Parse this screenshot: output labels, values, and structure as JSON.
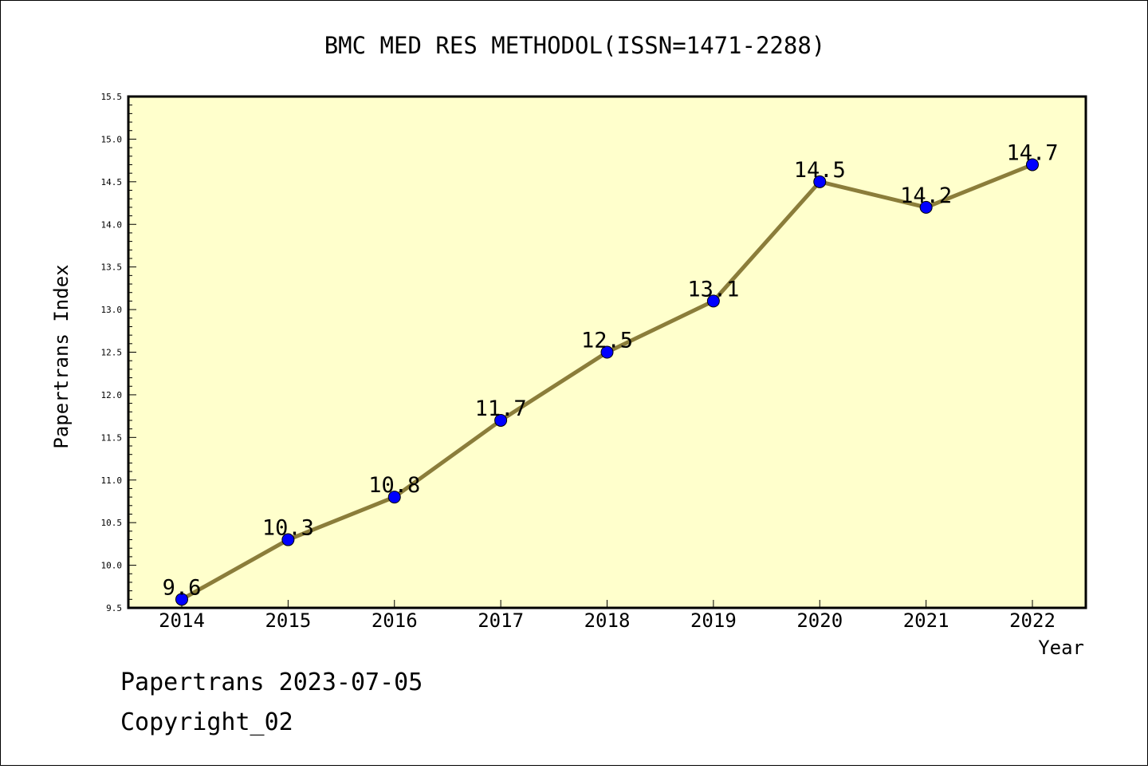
{
  "chart_data": {
    "type": "line",
    "title": "BMC MED RES METHODOL(ISSN=1471-2288)",
    "xlabel": "Year",
    "ylabel": "Papertrans Index",
    "x": [
      "2014",
      "2015",
      "2016",
      "2017",
      "2018",
      "2019",
      "2020",
      "2021",
      "2022"
    ],
    "y": [
      9.6,
      10.3,
      10.8,
      11.7,
      12.5,
      13.1,
      14.5,
      14.2,
      14.7
    ],
    "data_labels": [
      "9.6",
      "10.3",
      "10.8",
      "11.7",
      "12.5",
      "13.1",
      "14.5",
      "14.2",
      "14.7"
    ],
    "ylim": [
      9.5,
      15.5
    ],
    "yticks": [
      "9.5",
      "10.0",
      "10.5",
      "11.0",
      "11.5",
      "12.0",
      "12.5",
      "13.0",
      "13.5",
      "14.0",
      "14.5",
      "15.0",
      "15.5"
    ],
    "grid": false,
    "colors": {
      "plot_background": "#ffffcc",
      "line": "#8b7d3a",
      "marker": "#0000ff"
    }
  },
  "footer": {
    "line1": "Papertrans 2023-07-05",
    "line2": "Copyright_02"
  }
}
